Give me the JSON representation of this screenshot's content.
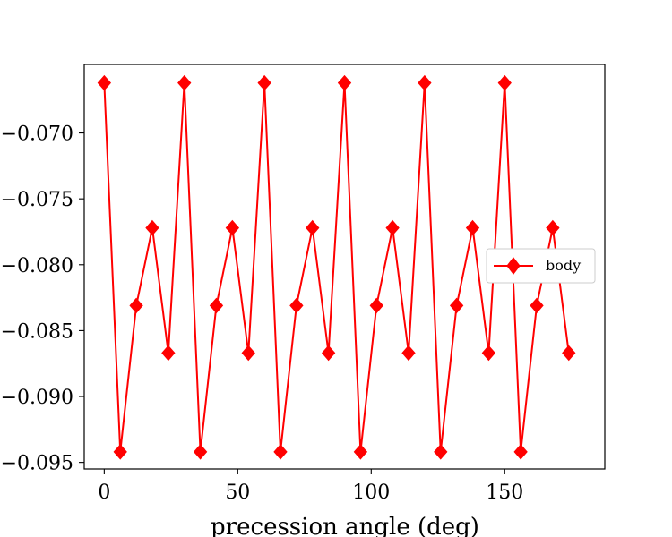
{
  "colors": {
    "series": "#ff0000",
    "axes": "#000000",
    "background": "#ffffff"
  },
  "chart_data": {
    "type": "line",
    "title": "",
    "xlabel": "precession angle (deg)",
    "ylabel": "",
    "xlim": [
      -7.5,
      187.5
    ],
    "ylim": [
      -0.0955,
      -0.0648
    ],
    "xticks": [
      0,
      50,
      100,
      150
    ],
    "xtick_labels": [
      "0",
      "50",
      "100",
      "150"
    ],
    "yticks": [
      -0.07,
      -0.075,
      -0.08,
      -0.085,
      -0.09,
      -0.095
    ],
    "ytick_labels": [
      "−0.070",
      "−0.075",
      "−0.080",
      "−0.085",
      "−0.090",
      "−0.095"
    ],
    "grid": false,
    "legend": {
      "position": "center-right"
    },
    "series": [
      {
        "name": "body",
        "color": "#ff0000",
        "marker": "diamond",
        "x": [
          0,
          6,
          12,
          18,
          24,
          30,
          36,
          42,
          48,
          54,
          60,
          66,
          72,
          78,
          84,
          90,
          96,
          102,
          108,
          114,
          120,
          126,
          132,
          138,
          144,
          150,
          156,
          162,
          168,
          174
        ],
        "y": [
          -0.0662,
          -0.0942,
          -0.0831,
          -0.0772,
          -0.0867,
          -0.0662,
          -0.0942,
          -0.0831,
          -0.0772,
          -0.0867,
          -0.0662,
          -0.0942,
          -0.0831,
          -0.0772,
          -0.0867,
          -0.0662,
          -0.0942,
          -0.0831,
          -0.0772,
          -0.0867,
          -0.0662,
          -0.0942,
          -0.0831,
          -0.0772,
          -0.0867,
          -0.0662,
          -0.0942,
          -0.0831,
          -0.0772,
          -0.0867
        ]
      }
    ]
  }
}
